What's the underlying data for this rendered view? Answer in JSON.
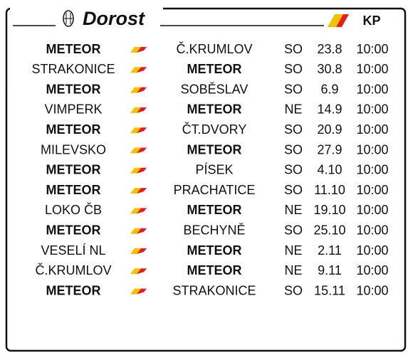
{
  "header": {
    "title": "Dorost",
    "league": "KP"
  },
  "matches": [
    {
      "home": "METEOR",
      "away": "Č.KRUMLOV",
      "day": "SO",
      "date": "23.8",
      "time": "10:00"
    },
    {
      "home": "STRAKONICE",
      "away": "METEOR",
      "day": "SO",
      "date": "30.8",
      "time": "10:00"
    },
    {
      "home": "METEOR",
      "away": "SOBĚSLAV",
      "day": "SO",
      "date": "6.9",
      "time": "10:00"
    },
    {
      "home": "VIMPERK",
      "away": "METEOR",
      "day": "NE",
      "date": "14.9",
      "time": "10:00"
    },
    {
      "home": "METEOR",
      "away": "ČT.DVORY",
      "day": "SO",
      "date": "20.9",
      "time": "10:00"
    },
    {
      "home": "MILEVSKO",
      "away": "METEOR",
      "day": "SO",
      "date": "27.9",
      "time": "10:00"
    },
    {
      "home": "METEOR",
      "away": "PÍSEK",
      "day": "SO",
      "date": "4.10",
      "time": "10:00"
    },
    {
      "home": "METEOR",
      "away": "PRACHATICE",
      "day": "SO",
      "date": "11.10",
      "time": "10:00"
    },
    {
      "home": "LOKO ČB",
      "away": "METEOR",
      "day": "NE",
      "date": "19.10",
      "time": "10:00"
    },
    {
      "home": "METEOR",
      "away": "BECHYNĚ",
      "day": "SO",
      "date": "25.10",
      "time": "10:00"
    },
    {
      "home": "VESELÍ NL",
      "away": "METEOR",
      "day": "NE",
      "date": "2.11",
      "time": "10:00"
    },
    {
      "home": "Č.KRUMLOV",
      "away": "METEOR",
      "day": "NE",
      "date": "9.11",
      "time": "10:00"
    },
    {
      "home": "METEOR",
      "away": "STRAKONICE",
      "day": "SO",
      "date": "15.11",
      "time": "10:00"
    }
  ]
}
